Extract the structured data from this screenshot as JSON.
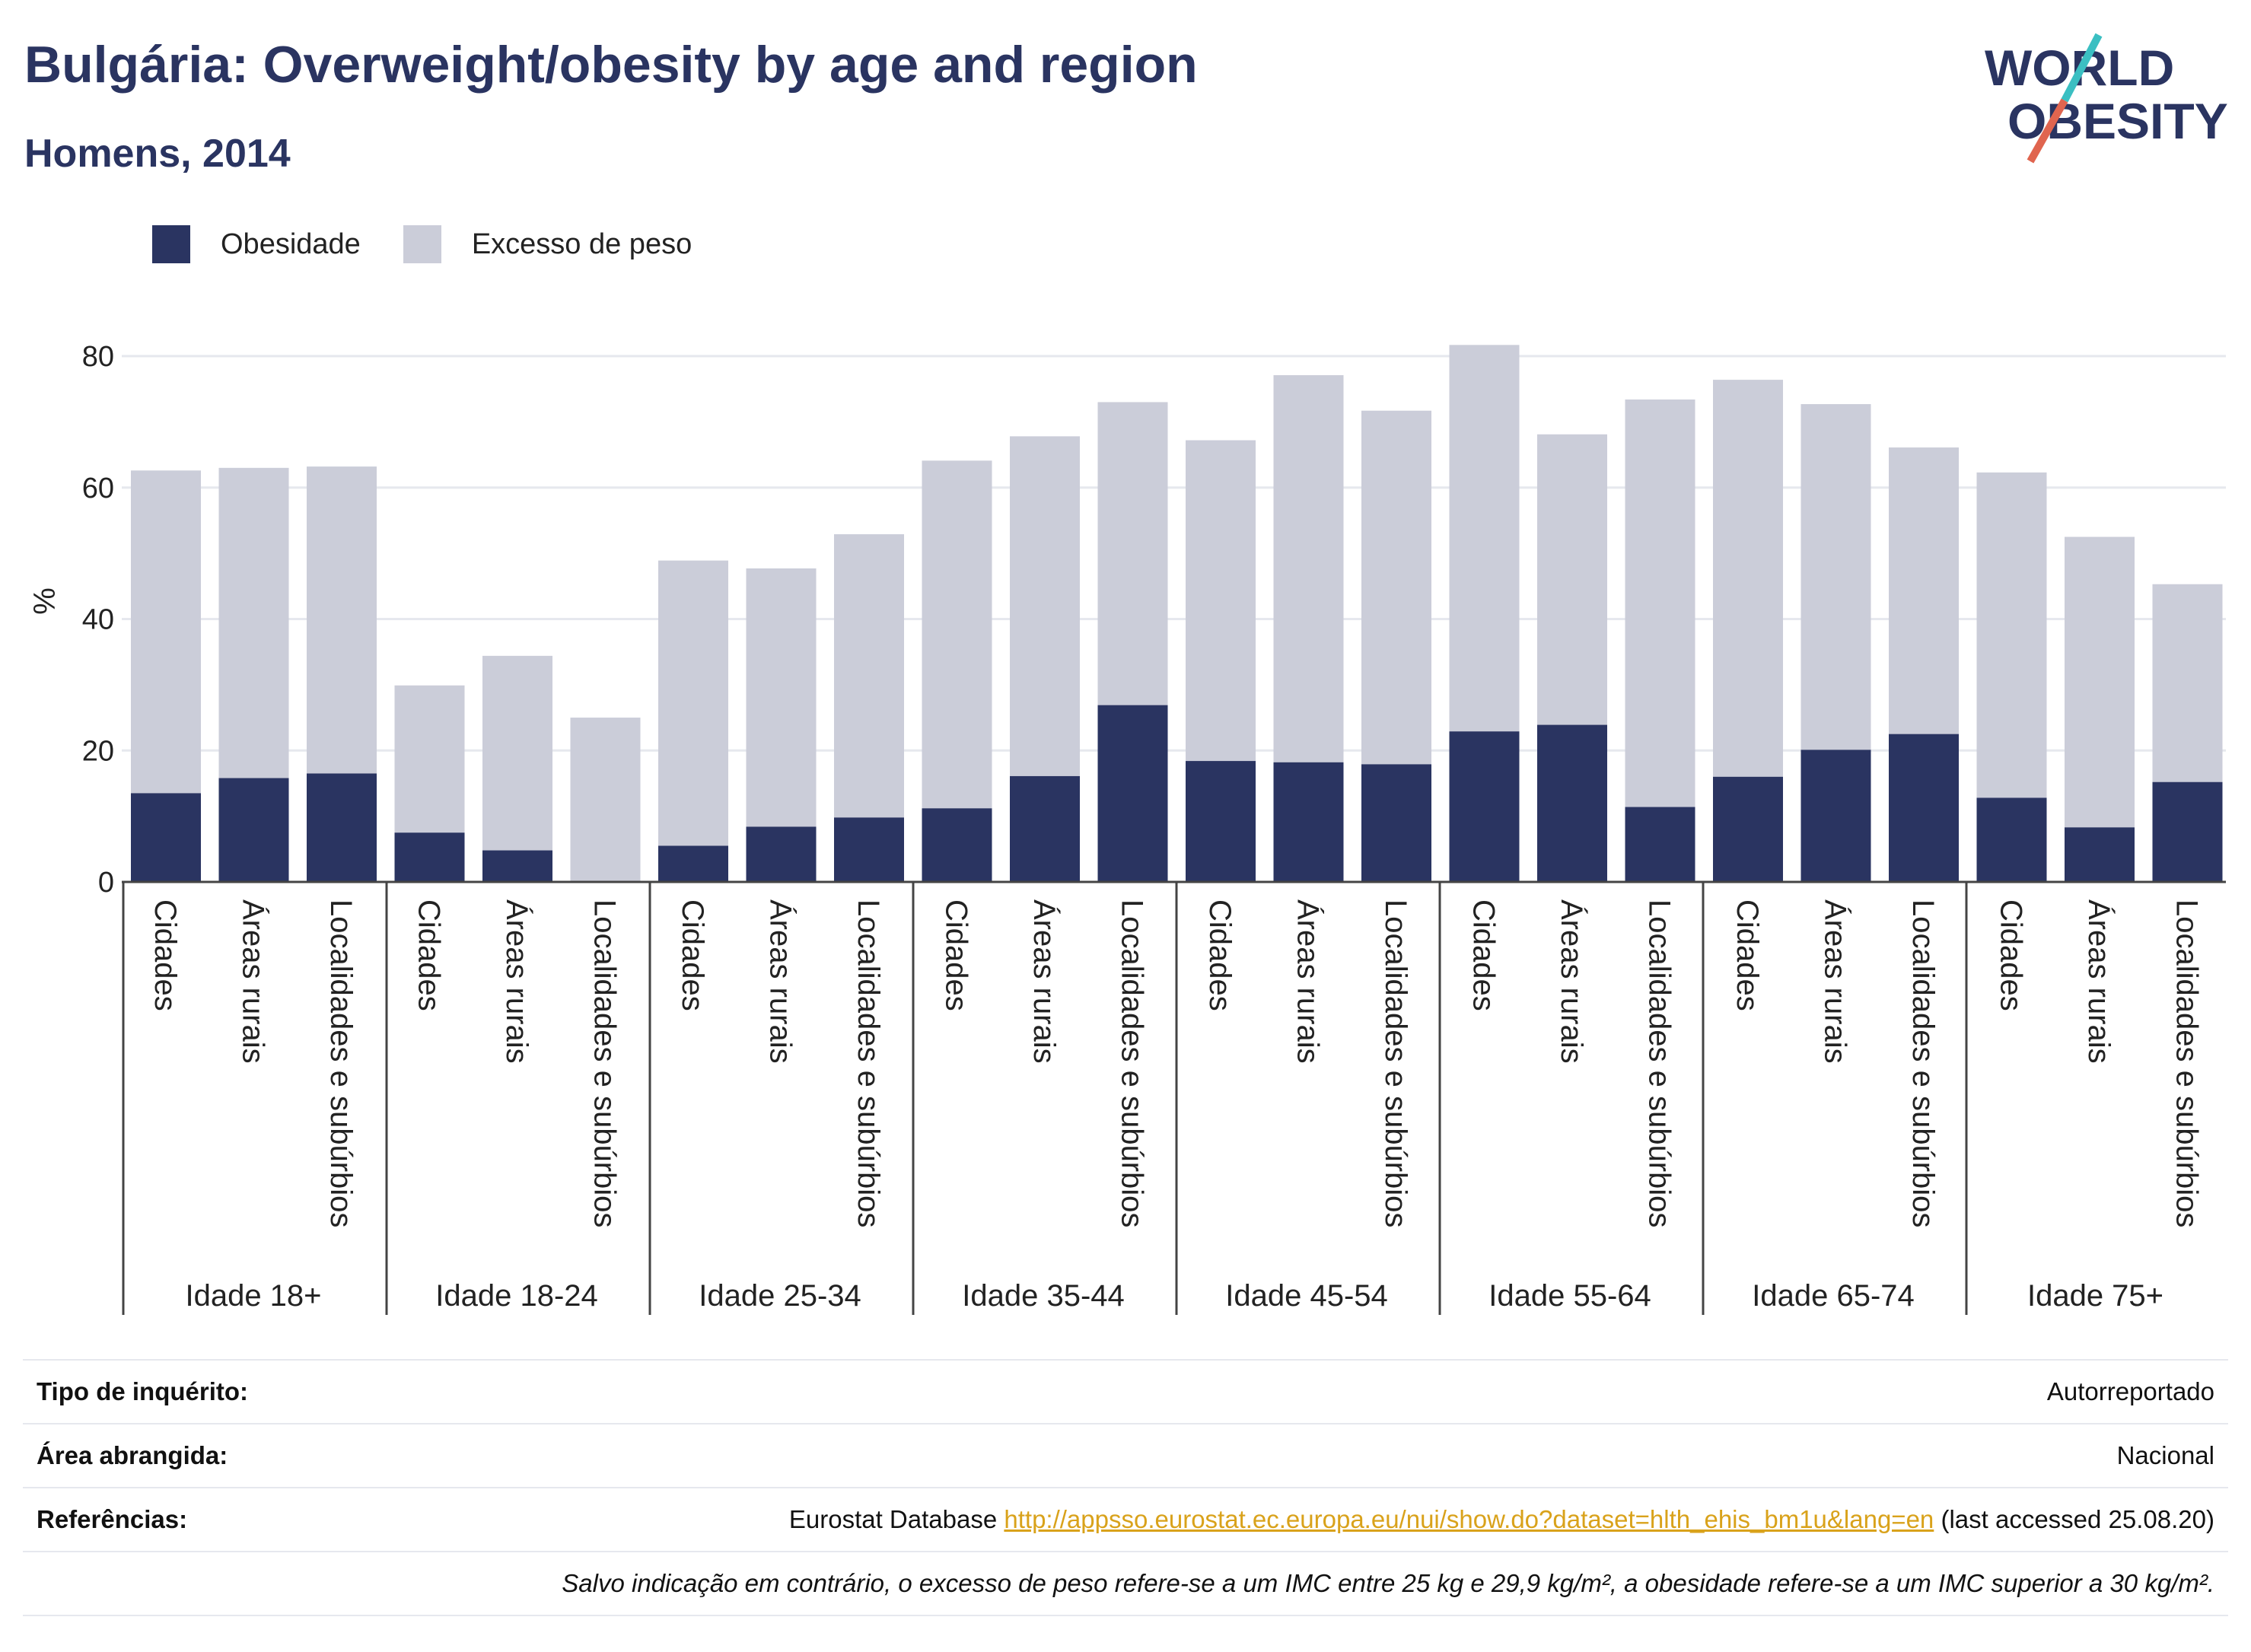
{
  "header": {
    "title": "Bulgária: Overweight/obesity by age and region",
    "subtitle": "Homens, 2014",
    "logo_line1": "WORLD",
    "logo_line2": "OBESITY"
  },
  "colors": {
    "obesity": "#2a3461",
    "overweight": "#cbcdd9",
    "text": "#2a3461",
    "link": "#d9a21b"
  },
  "chart_data": {
    "type": "bar",
    "stacked": true,
    "ylabel": "%",
    "ylim": [
      0,
      80
    ],
    "yticks": [
      0,
      20,
      40,
      60,
      80
    ],
    "grid": true,
    "legend_position": "top-left",
    "groups": [
      "Idade 18+",
      "Idade 18-24",
      "Idade 25-34",
      "Idade 35-44",
      "Idade 45-54",
      "Idade 55-64",
      "Idade 65-74",
      "Idade 75+"
    ],
    "subcategories": [
      "Cidades",
      "Áreas rurais",
      "Localidades e subúrbios"
    ],
    "series": [
      {
        "name": "Obesidade",
        "values": [
          13.5,
          15.8,
          16.5,
          7.5,
          4.8,
          0,
          5.5,
          8.4,
          9.8,
          11.2,
          16.1,
          26.9,
          18.4,
          18.2,
          17.9,
          22.9,
          23.9,
          11.4,
          16.0,
          20.1,
          22.5,
          12.8,
          8.3,
          15.2
        ]
      },
      {
        "name": "Excesso de peso",
        "values": [
          49.1,
          47.2,
          46.7,
          22.4,
          29.6,
          25.0,
          43.4,
          39.3,
          43.1,
          52.9,
          51.7,
          46.1,
          48.8,
          58.9,
          53.8,
          58.8,
          44.2,
          62.0,
          60.4,
          52.6,
          43.6,
          49.5,
          44.2,
          30.1
        ]
      }
    ]
  },
  "meta": {
    "survey_type_label": "Tipo de inquérito:",
    "survey_type_value": "Autorreportado",
    "area_label": "Área abrangida:",
    "area_value": "Nacional",
    "references_label": "Referências:",
    "references_prefix": "Eurostat Database",
    "references_link": "http://appsso.eurostat.ec.europa.eu/nui/show.do?dataset=hlth_ehis_bm1u&lang=en",
    "references_suffix": "(last accessed 25.08.20)",
    "note": "Salvo indicação em contrário, o excesso de peso refere-se a um IMC entre 25 kg e 29,9 kg/m², a obesidade refere-se a um IMC superior a 30 kg/m²."
  }
}
